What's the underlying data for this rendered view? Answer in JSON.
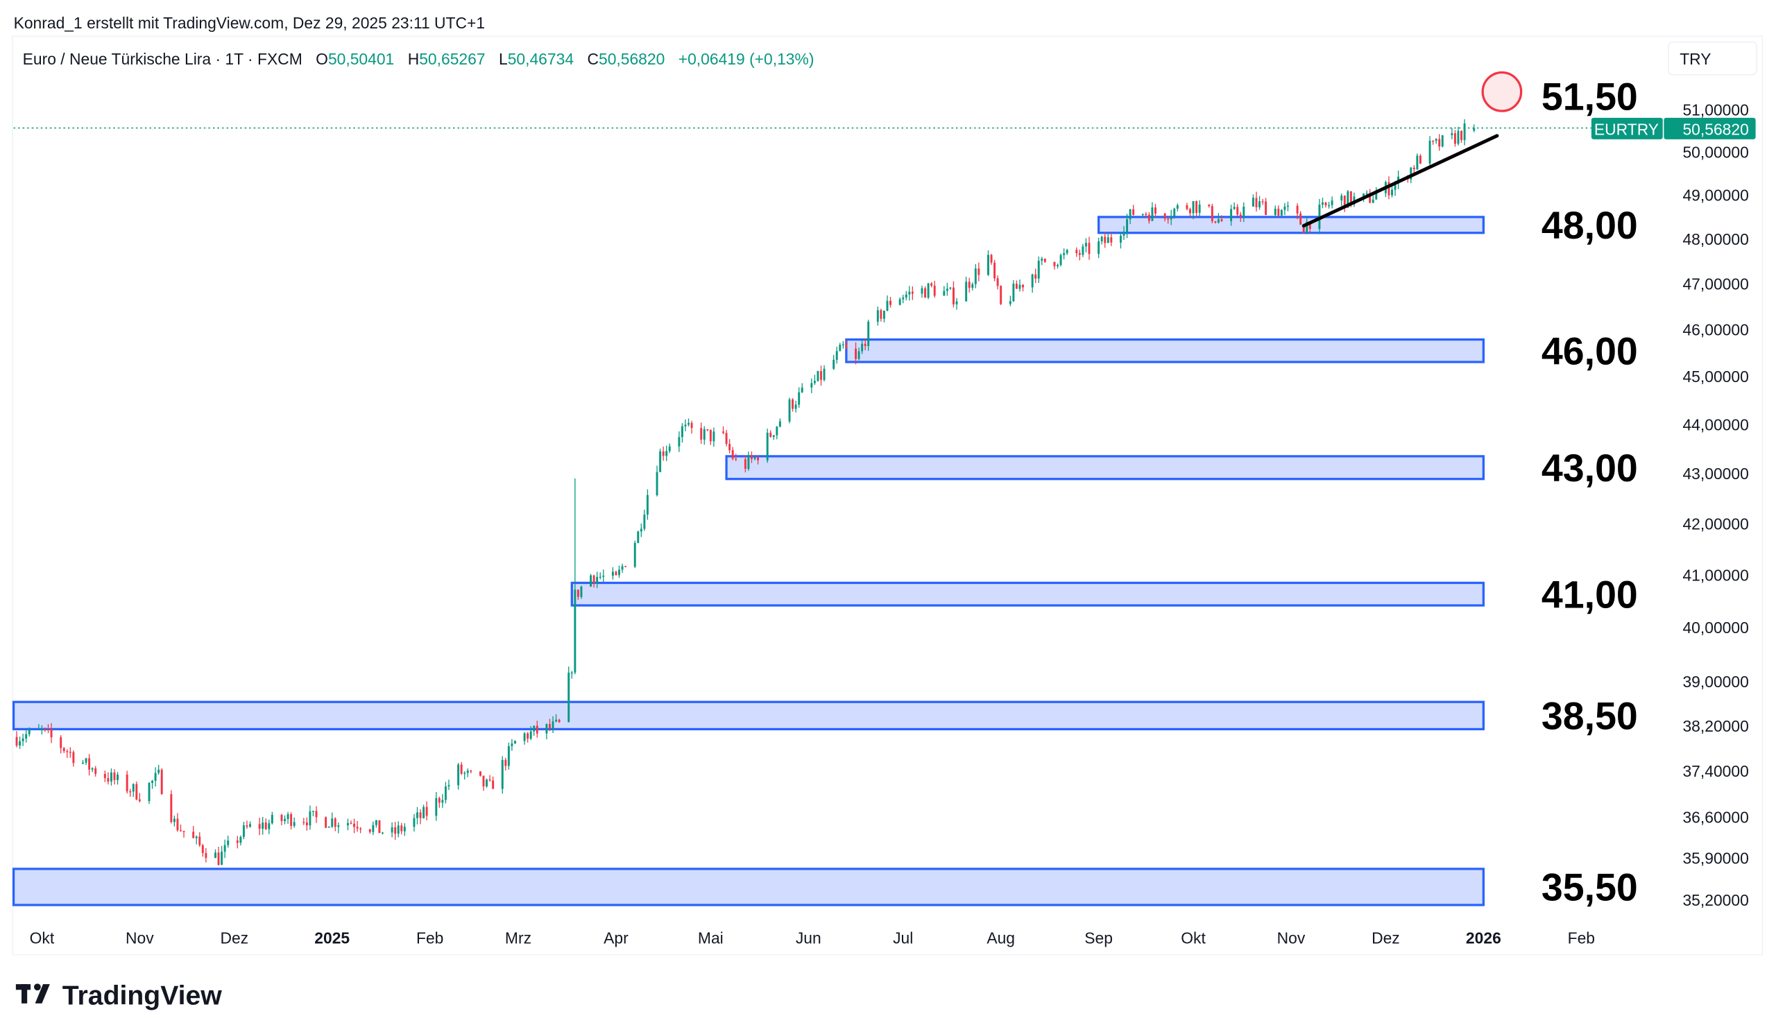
{
  "caption": "Konrad_1 erstellt mit TradingView.com, Dez 29, 2025 23:11 UTC+1",
  "legend": {
    "symbol": "Euro  / Neue Türkische Lira · 1T · FXCM",
    "o_label": "O",
    "o": "50,50401",
    "h_label": "H",
    "h": "50,65267",
    "l_label": "L",
    "l": "50,46734",
    "c_label": "C",
    "c": "50,56820",
    "change": "+0,06419 (+0,13%)"
  },
  "currency_button": "TRY",
  "price_tag": {
    "symbol": "EURTRY",
    "value": "50,56820"
  },
  "logo_text": "TradingView",
  "colors": {
    "up": "#089981",
    "down": "#f23645",
    "zone_fill": "#d2dcff",
    "zone_stroke": "#2962ff",
    "trend": "#000000",
    "marker": "#f23645"
  },
  "chart_data": {
    "type": "candlestick",
    "symbol": "EURTRY",
    "interval": "1D",
    "y_scale": "log",
    "ylim": [
      35.0,
      52.0
    ],
    "xlim": [
      "2024-09-22",
      "2026-02-10"
    ],
    "last_candle": {
      "date": "2025-12-29",
      "open": 50.50401,
      "high": 50.65267,
      "low": 50.46734,
      "close": 50.5682
    },
    "close_anchors": [
      [
        "2024-09-23",
        38.0
      ],
      [
        "2024-10-01",
        38.1
      ],
      [
        "2024-10-15",
        37.5
      ],
      [
        "2024-11-01",
        37.0
      ],
      [
        "2024-11-07",
        37.3
      ],
      [
        "2024-11-12",
        36.5
      ],
      [
        "2024-11-20",
        36.1
      ],
      [
        "2024-11-26",
        35.9
      ],
      [
        "2024-12-05",
        36.4
      ],
      [
        "2024-12-20",
        36.6
      ],
      [
        "2025-01-10",
        36.5
      ],
      [
        "2025-01-20",
        36.3
      ],
      [
        "2025-02-01",
        36.7
      ],
      [
        "2025-02-10",
        37.4
      ],
      [
        "2025-02-20",
        37.1
      ],
      [
        "2025-03-01",
        38.0
      ],
      [
        "2025-03-14",
        38.2
      ],
      [
        "2025-03-18",
        39.3
      ],
      [
        "2025-03-19",
        40.6
      ],
      [
        "2025-03-24",
        41.0
      ],
      [
        "2025-04-01",
        40.9
      ],
      [
        "2025-04-08",
        41.8
      ],
      [
        "2025-04-11",
        42.6
      ],
      [
        "2025-04-15",
        43.4
      ],
      [
        "2025-04-22",
        43.9
      ],
      [
        "2025-05-05",
        43.7
      ],
      [
        "2025-05-10",
        43.1
      ],
      [
        "2025-05-15",
        43.3
      ],
      [
        "2025-05-26",
        44.4
      ],
      [
        "2025-06-05",
        45.0
      ],
      [
        "2025-06-12",
        45.6
      ],
      [
        "2025-06-16",
        45.3
      ],
      [
        "2025-06-20",
        46.0
      ],
      [
        "2025-06-28",
        46.7
      ],
      [
        "2025-07-10",
        46.9
      ],
      [
        "2025-07-18",
        46.7
      ],
      [
        "2025-07-28",
        47.6
      ],
      [
        "2025-08-01",
        46.5
      ],
      [
        "2025-08-06",
        46.9
      ],
      [
        "2025-08-15",
        47.5
      ],
      [
        "2025-08-27",
        47.7
      ],
      [
        "2025-09-05",
        48.0
      ],
      [
        "2025-09-12",
        48.6
      ],
      [
        "2025-09-22",
        48.6
      ],
      [
        "2025-10-01",
        48.8
      ],
      [
        "2025-10-10",
        48.4
      ],
      [
        "2025-10-20",
        48.8
      ],
      [
        "2025-11-01",
        48.6
      ],
      [
        "2025-11-05",
        48.3
      ],
      [
        "2025-11-15",
        48.9
      ],
      [
        "2025-11-25",
        48.9
      ],
      [
        "2025-12-05",
        49.3
      ],
      [
        "2025-12-15",
        50.1
      ],
      [
        "2025-12-22",
        50.3
      ],
      [
        "2025-12-26",
        50.5
      ],
      [
        "2025-12-29",
        50.568
      ]
    ],
    "spikes": [
      {
        "date": "2025-03-19",
        "high": 42.9
      }
    ],
    "zones": [
      {
        "label": "35,50",
        "from": "2024-09-22",
        "to": "2026-01-01",
        "low": 35.12,
        "high": 35.72
      },
      {
        "label": "38,50",
        "from": "2024-09-22",
        "to": "2026-01-01",
        "low": 38.14,
        "high": 38.63
      },
      {
        "label": "41,00",
        "from": "2025-03-18",
        "to": "2026-01-01",
        "low": 40.42,
        "high": 40.85
      },
      {
        "label": "43,00",
        "from": "2025-05-06",
        "to": "2026-01-01",
        "low": 42.89,
        "high": 43.35
      },
      {
        "label": "46,00",
        "from": "2025-06-13",
        "to": "2026-01-01",
        "low": 45.31,
        "high": 45.79
      },
      {
        "label": "48,00",
        "from": "2025-09-01",
        "to": "2026-01-01",
        "low": 48.14,
        "high": 48.5
      }
    ],
    "target_label": "51,50",
    "trendline": [
      [
        "2025-11-05",
        48.3
      ],
      [
        "2026-01-01",
        50.25
      ]
    ],
    "yticks": [
      [
        "51,00000",
        51
      ],
      [
        "50,00000",
        50
      ],
      [
        "49,00000",
        49
      ],
      [
        "48,00000",
        48
      ],
      [
        "47,00000",
        47
      ],
      [
        "46,00000",
        46
      ],
      [
        "45,00000",
        45
      ],
      [
        "44,00000",
        44
      ],
      [
        "43,00000",
        43
      ],
      [
        "42,00000",
        42
      ],
      [
        "41,00000",
        41
      ],
      [
        "40,00000",
        40
      ],
      [
        "39,00000",
        39
      ],
      [
        "38,20000",
        38.2
      ],
      [
        "37,40000",
        37.4
      ],
      [
        "36,60000",
        36.6
      ],
      [
        "35,90000",
        35.9
      ],
      [
        "35,20000",
        35.2
      ]
    ],
    "xticks": [
      [
        "Okt",
        "2024-10-01"
      ],
      [
        "Nov",
        "2024-11-01"
      ],
      [
        "Dez",
        "2024-12-01"
      ],
      [
        "2025",
        "2025-01-01"
      ],
      [
        "Feb",
        "2025-02-01"
      ],
      [
        "Mrz",
        "2025-03-01"
      ],
      [
        "Apr",
        "2025-04-01"
      ],
      [
        "Mai",
        "2025-05-01"
      ],
      [
        "Jun",
        "2025-06-01"
      ],
      [
        "Jul",
        "2025-07-01"
      ],
      [
        "Aug",
        "2025-08-01"
      ],
      [
        "Sep",
        "2025-09-01"
      ],
      [
        "Okt",
        "2025-10-01"
      ],
      [
        "Nov",
        "2025-11-01"
      ],
      [
        "Dez",
        "2025-12-01"
      ],
      [
        "2026",
        "2026-01-01"
      ],
      [
        "Feb",
        "2026-02-01"
      ]
    ]
  }
}
